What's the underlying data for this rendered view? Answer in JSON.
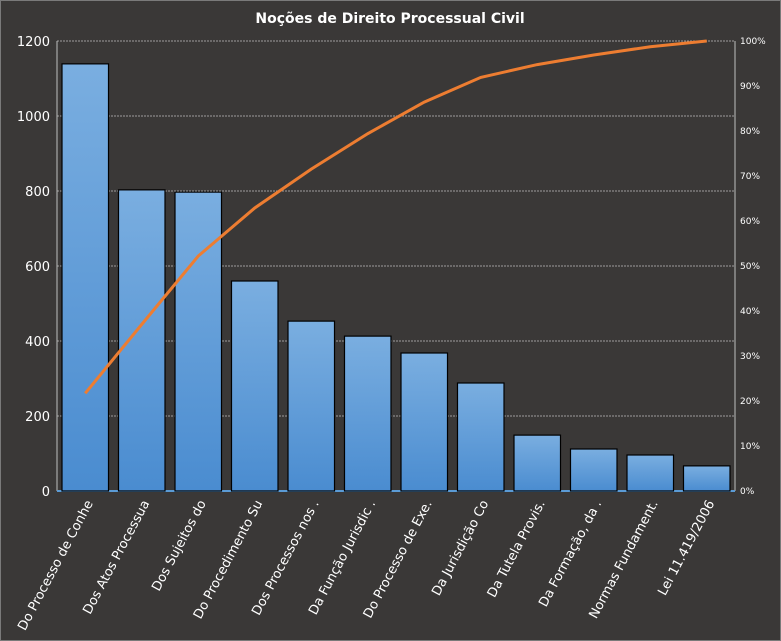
{
  "chart_data": {
    "type": "bar",
    "title": "Noções de Direito  Processual  Civil",
    "categories": [
      "Do Processo de Conhe",
      "Dos Atos  Processua",
      "Dos Sujeitos do",
      "Do Procedimento  Su",
      "Dos Processos nos .",
      "Da Função Jurisdic .",
      "Do Processo de Exe.",
      "Da Jurisdição Co",
      "Da Tutela Provis.",
      "Da Formação,  da  .",
      "Normas Fundament.",
      "Lei 11.419/2006"
    ],
    "values": [
      1139,
      803,
      797,
      560,
      453,
      413,
      368,
      288,
      149,
      112,
      96,
      67
    ],
    "ylim": [
      0,
      1200
    ],
    "yticks": [
      "0",
      "200",
      "400",
      "600",
      "800",
      "1000",
      "1200"
    ],
    "y2lim": [
      0,
      100
    ],
    "y2ticks": [
      "0%",
      "10%",
      "20%",
      "30%",
      "40%",
      "50%",
      "60%",
      "70%",
      "80%",
      "90%",
      "100%"
    ],
    "line_series": {
      "name": "Cumulative %",
      "type": "line",
      "derived": "cumulative percentage of values"
    },
    "grid": true,
    "colors": {
      "bar": "#5b9bd5",
      "line": "#ed7d31",
      "grid": "#bfbfbf",
      "text": "#ffffff"
    }
  }
}
